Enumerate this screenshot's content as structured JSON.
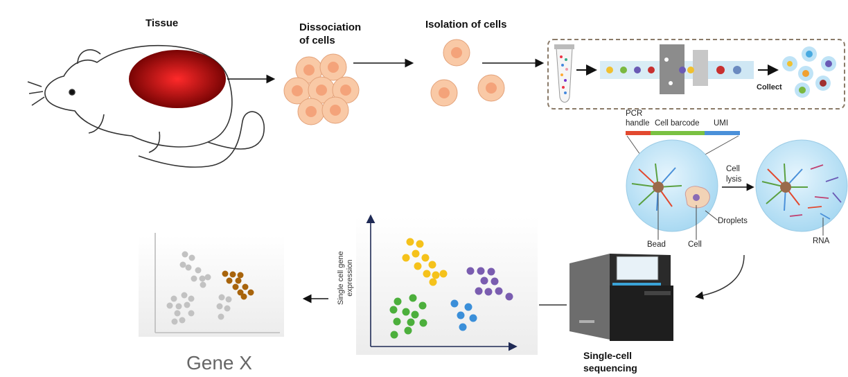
{
  "steps": {
    "tissue": "Tissue",
    "dissociation": [
      "Dissociation",
      "of cells"
    ],
    "isolation": "Isolation of cells",
    "collect": "Collect",
    "cell_lysis": [
      "Cell",
      "lysis"
    ],
    "droplets": "Droplets",
    "bead": "Bead",
    "cell": "Cell",
    "rna": "RNA",
    "sequencing": [
      "Single-cell",
      "sequencing"
    ]
  },
  "barcode": {
    "pcr_handle": [
      "PCR",
      "handle"
    ],
    "cell_barcode": "Cell barcode",
    "umi": "UMI",
    "colors": {
      "pcr": "#e2492f",
      "barcode": "#7ac142",
      "umi": "#4a90d9"
    }
  },
  "plots": {
    "expression_ylabel": [
      "Single cell gene",
      "expression"
    ],
    "gene_label": "Gene X"
  },
  "colors": {
    "tissue": "#b01010",
    "cell_fill": "#f9c9a6",
    "cell_nucleus": "#f4a37a",
    "droplet": "#bfe3f6",
    "cluster_yellow": "#f5c21b",
    "cluster_purple": "#7a5db0",
    "cluster_green": "#4caf3c",
    "cluster_blue": "#3b8fd9",
    "cluster_brown": "#a8640c",
    "cluster_gray": "#c2c2c2"
  }
}
